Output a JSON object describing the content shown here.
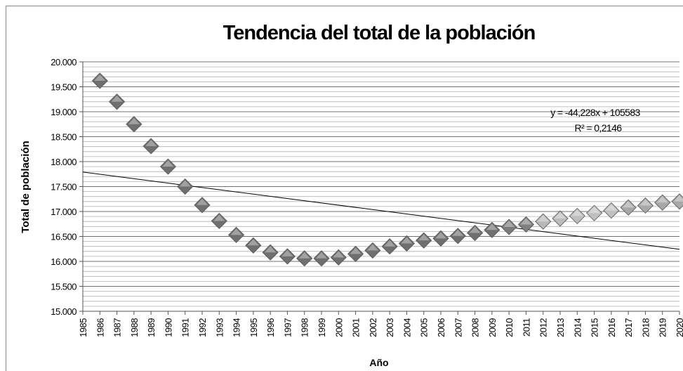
{
  "chart_data": {
    "type": "scatter",
    "title": "Tendencia del total de la población",
    "x_label": "Año",
    "y_label": "Total de población",
    "series": [
      {
        "name": "Total de población",
        "color": "#6f6f6f",
        "point_colors": [
          "#6f6f6f",
          "#6f6f6f",
          "#6f6f6f",
          "#6f6f6f",
          "#6f6f6f",
          "#6f6f6f",
          "#6f6f6f",
          "#6f6f6f",
          "#6f6f6f",
          "#6f6f6f",
          "#6f6f6f",
          "#6f6f6f",
          "#6f6f6f",
          "#6f6f6f",
          "#6f6f6f",
          "#6f6f6f",
          "#6f6f6f",
          "#6f6f6f",
          "#6f6f6f",
          "#6f6f6f",
          "#6f6f6f",
          "#6f6f6f",
          "#6f6f6f",
          "#6f6f6f",
          "#7a7a7a",
          "#808080",
          "#b8b8b8",
          "#bcbcbc",
          "#bebebe",
          "#c0c0c0",
          "#c0c0c0",
          "#a8a8a8",
          "#a8a8a8",
          "#a8a8a8",
          "#a8a8a8"
        ],
        "x": [
          1986,
          1987,
          1988,
          1989,
          1990,
          1991,
          1992,
          1993,
          1994,
          1995,
          1996,
          1997,
          1998,
          1999,
          2000,
          2001,
          2002,
          2003,
          2004,
          2005,
          2006,
          2007,
          2008,
          2009,
          2010,
          2011,
          2012,
          2013,
          2014,
          2015,
          2016,
          2017,
          2018,
          2019,
          2020
        ],
        "values": [
          19620,
          19200,
          18750,
          18310,
          17900,
          17500,
          17130,
          16810,
          16530,
          16320,
          16180,
          16100,
          16060,
          16060,
          16080,
          16150,
          16220,
          16300,
          16360,
          16420,
          16460,
          16510,
          16570,
          16630,
          16690,
          16740,
          16800,
          16860,
          16910,
          16970,
          17020,
          17080,
          17120,
          17180,
          17200
        ]
      }
    ],
    "trendline": {
      "slope": -44.228,
      "intercept": 105583,
      "color": "#000000",
      "equation": "y = -44,228x + 105583",
      "r2": "R² = 0,2146"
    },
    "xlim": [
      1985,
      2020
    ],
    "xticks": [
      1985,
      1986,
      1987,
      1988,
      1989,
      1990,
      1991,
      1992,
      1993,
      1994,
      1995,
      1996,
      1997,
      1998,
      1999,
      2000,
      2001,
      2002,
      2003,
      2004,
      2005,
      2006,
      2007,
      2008,
      2009,
      2010,
      2011,
      2012,
      2013,
      2014,
      2015,
      2016,
      2017,
      2018,
      2019,
      2020
    ],
    "ylim": [
      15000,
      20000
    ],
    "yticks": [
      {
        "value": 15000,
        "label": "15.000"
      },
      {
        "value": 15500,
        "label": "15.500"
      },
      {
        "value": 16000,
        "label": "16.000"
      },
      {
        "value": 16500,
        "label": "16.500"
      },
      {
        "value": 17000,
        "label": "17.000"
      },
      {
        "value": 17500,
        "label": "17.500"
      },
      {
        "value": 18000,
        "label": "18.000"
      },
      {
        "value": 18500,
        "label": "18.500"
      },
      {
        "value": 19000,
        "label": "19.000"
      },
      {
        "value": 19500,
        "label": "19.500"
      },
      {
        "value": 20000,
        "label": "20.000"
      }
    ],
    "grid": true,
    "minor_grid_step": 100
  }
}
